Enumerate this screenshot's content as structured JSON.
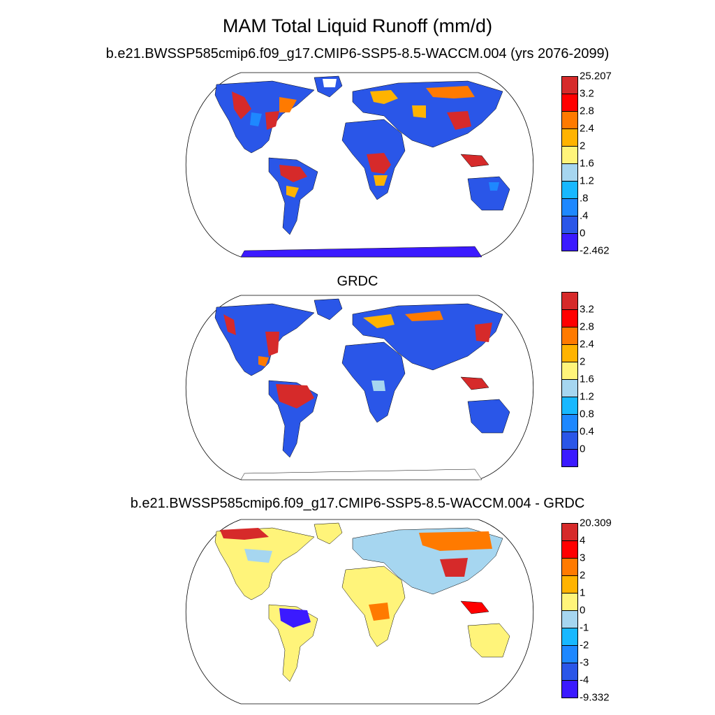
{
  "titles": {
    "main": "MAM Total Liquid Runoff (mm/d)",
    "panel1": "b.e21.BWSSP585cmip6.f09_g17.CMIP6-SSP5-8.5-WACCM.004 (yrs 2076-2099)",
    "panel2": "GRDC",
    "panel3": "b.e21.BWSSP585cmip6.f09_g17.CMIP6-SSP5-8.5-WACCM.004 - GRDC"
  },
  "colorbars": {
    "panel1": {
      "colors": [
        "#d62a2a",
        "#ff0000",
        "#ff7a00",
        "#ffb300",
        "#fff47a",
        "#a6d6f0",
        "#18b8ff",
        "#1e88ff",
        "#2a56e8",
        "#3b1aff"
      ],
      "labels": [
        "25.207",
        "3.2",
        "2.8",
        "2.4",
        "2",
        "1.6",
        "1.2",
        ".8",
        ".4",
        "0",
        "-2.462"
      ]
    },
    "panel2": {
      "colors": [
        "#d62a2a",
        "#ff0000",
        "#ff7a00",
        "#ffb300",
        "#fff47a",
        "#a6d6f0",
        "#18b8ff",
        "#1e88ff",
        "#2a56e8",
        "#3b1aff"
      ],
      "labels": [
        "3.2",
        "2.8",
        "2.4",
        "2",
        "1.6",
        "1.2",
        "0.8",
        "0.4",
        "0"
      ]
    },
    "panel3": {
      "colors": [
        "#d62a2a",
        "#ff0000",
        "#ff7a00",
        "#ffb300",
        "#fff47a",
        "#a6d6f0",
        "#18b8ff",
        "#1e88ff",
        "#2a56e8",
        "#3b1aff"
      ],
      "labels": [
        "20.309",
        "4",
        "3",
        "2",
        "1",
        "0",
        "-1",
        "-2",
        "-3",
        "-4",
        "-9.332"
      ]
    }
  }
}
